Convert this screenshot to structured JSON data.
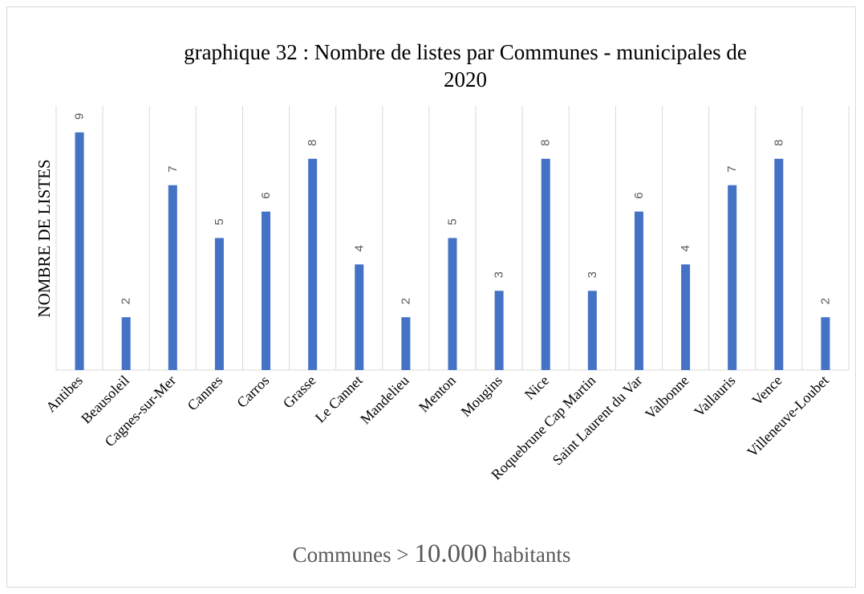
{
  "chart_data": {
    "type": "bar",
    "title": "graphique 32 : Nombre de listes par Communes - municipales de 2020",
    "title_line1": "graphique 32 : Nombre de listes par Communes - municipales de",
    "title_line2": "2020",
    "ylabel": "NOMBRE DE LISTES",
    "xlabel": "Communes > 10.000 habitants",
    "xlabel_prefix": "Communes > ",
    "xlabel_number": "10.000",
    "xlabel_suffix": " habitants",
    "categories": [
      "Antibes",
      "Beausoleil",
      "Cagnes-sur-Mer",
      "Cannes",
      "Carros",
      "Grasse",
      "Le Cannet",
      "Mandelieu",
      "Menton",
      "Mougins",
      "Nice",
      "Roquebrune Cap Martin",
      "Saint Laurent du Var",
      "Valbonne",
      "Vallauris",
      "Vence",
      "Villeneuve-Loubet"
    ],
    "values": [
      9,
      2,
      7,
      5,
      6,
      8,
      4,
      2,
      5,
      3,
      8,
      3,
      6,
      4,
      7,
      8,
      2
    ],
    "ylim": [
      0,
      9
    ],
    "grid": "vertical category lines",
    "data_labels": true,
    "bar_color": "#4472c4"
  }
}
